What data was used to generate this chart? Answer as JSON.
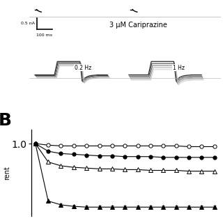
{
  "title_top": "3 μM Cariprazine",
  "scale_bar_nA": "0.5 nA",
  "scale_bar_ms": "100 ms",
  "label_0_2hz": "0.2 Hz",
  "label_1hz": "1 Hz",
  "panel_B_label": "B",
  "ylabel_B": "rent",
  "background_color": "#ffffff",
  "series_open_circle": [
    1.0,
    0.98,
    0.97,
    0.97,
    0.97,
    0.97,
    0.97,
    0.97,
    0.97,
    0.97,
    0.97,
    0.97,
    0.96,
    0.96,
    0.96
  ],
  "series_filled_circle": [
    1.0,
    0.9,
    0.87,
    0.86,
    0.85,
    0.84,
    0.84,
    0.83,
    0.83,
    0.83,
    0.82,
    0.82,
    0.82,
    0.82,
    0.82
  ],
  "series_open_triangle": [
    1.0,
    0.76,
    0.71,
    0.69,
    0.68,
    0.67,
    0.67,
    0.66,
    0.66,
    0.65,
    0.65,
    0.65,
    0.64,
    0.64,
    0.64
  ],
  "series_filled_triangle": [
    1.0,
    0.25,
    0.2,
    0.18,
    0.17,
    0.17,
    0.17,
    0.17,
    0.17,
    0.17,
    0.17,
    0.17,
    0.17,
    0.17,
    0.17
  ],
  "x_values": [
    0,
    1,
    2,
    3,
    4,
    5,
    6,
    7,
    8,
    9,
    10,
    11,
    12,
    13,
    14
  ]
}
